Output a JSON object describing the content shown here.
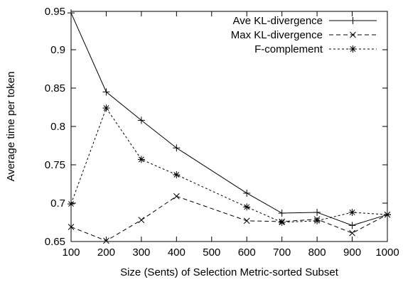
{
  "chart_data": {
    "type": "line",
    "title": "",
    "xlabel": "Size (Sents) of Selection Metric-sorted Subset",
    "ylabel": "Average time per token",
    "xlim": [
      100,
      1000
    ],
    "ylim": [
      0.65,
      0.95
    ],
    "x_ticks": [
      "100",
      "200",
      "300",
      "400",
      "500",
      "600",
      "700",
      "800",
      "900",
      "1000"
    ],
    "y_ticks": [
      "0.65",
      "0.7",
      "0.75",
      "0.8",
      "0.85",
      "0.9",
      "0.95"
    ],
    "x_tick_values": [
      100,
      200,
      300,
      400,
      500,
      600,
      700,
      800,
      900,
      1000
    ],
    "y_tick_values": [
      0.65,
      0.7,
      0.75,
      0.8,
      0.85,
      0.9,
      0.95
    ],
    "grid": false,
    "legend_position": "top-right",
    "x": [
      100,
      200,
      300,
      400,
      600,
      700,
      800,
      900,
      1000
    ],
    "series": [
      {
        "name": "Ave KL-divergence",
        "marker": "plus",
        "line": "solid",
        "values": [
          0.948,
          0.845,
          0.808,
          0.772,
          0.713,
          0.687,
          0.688,
          0.671,
          0.685
        ]
      },
      {
        "name": "Max KL-divergence",
        "marker": "cross",
        "line": "dashed",
        "values": [
          0.669,
          0.651,
          0.678,
          0.709,
          0.677,
          0.676,
          0.679,
          0.661,
          0.685
        ]
      },
      {
        "name": "F-complement",
        "marker": "star",
        "line": "dotted",
        "values": [
          0.699,
          0.824,
          0.757,
          0.737,
          0.695,
          0.675,
          0.677,
          0.688,
          0.685
        ]
      }
    ]
  }
}
